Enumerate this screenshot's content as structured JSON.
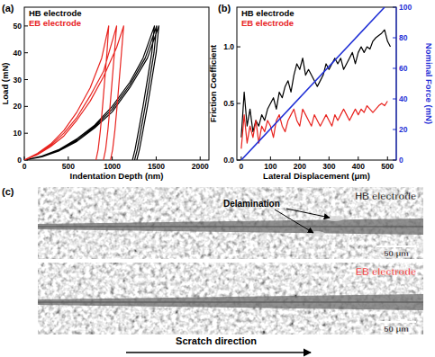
{
  "chart_data": [
    {
      "type": "line",
      "title": "(a)",
      "x_label": "Indentation Depth (nm)",
      "y_label": "Load (mN)",
      "xlim": [
        0,
        2100
      ],
      "ylim": [
        0,
        57
      ],
      "xticks": [
        0,
        500,
        1000,
        1500,
        2000
      ],
      "yticks": [
        0,
        10,
        20,
        30,
        40,
        50
      ],
      "grid": false,
      "legend": "upper left",
      "series": [
        {
          "name": "HB electrode",
          "color": "#000000",
          "x": [
            0,
            200,
            400,
            600,
            800,
            1000,
            1200,
            1350,
            1480,
            1450,
            1400,
            1350,
            1300,
            1260,
            1230,
            1230,
            0,
            200,
            400,
            600,
            800,
            1000,
            1200,
            1375,
            1505,
            1475,
            1425,
            1375,
            1325,
            1285,
            1255,
            1255,
            0,
            200,
            400,
            600,
            800,
            1000,
            1200,
            1400,
            1530,
            1500,
            1450,
            1400,
            1350,
            1310,
            1280
          ],
          "values": [
            0,
            1.5,
            4,
            8,
            13,
            20,
            29,
            38,
            50,
            40,
            30,
            20,
            11,
            4,
            0,
            null,
            0,
            1.3,
            3.7,
            7.5,
            12.5,
            19,
            28,
            38,
            50,
            40,
            30,
            20,
            11,
            4,
            0,
            null,
            0,
            1.2,
            3.5,
            7,
            12,
            18,
            27,
            38,
            50,
            40,
            30,
            20,
            11,
            4,
            0
          ]
        },
        {
          "name": "EB electrode",
          "color": "#e8231f",
          "x": [
            0,
            150,
            300,
            450,
            600,
            750,
            880,
            960,
            940,
            915,
            890,
            865,
            840,
            815,
            815,
            0,
            150,
            300,
            450,
            600,
            750,
            900,
            1050,
            1025,
            1000,
            975,
            950,
            925,
            900,
            900,
            0,
            150,
            300,
            450,
            600,
            750,
            900,
            1050,
            1130,
            1105,
            1080,
            1055,
            1030,
            1005,
            980
          ],
          "values": [
            0,
            2.5,
            6,
            11,
            18,
            27,
            38,
            50,
            40,
            30,
            20,
            11,
            4,
            0,
            null,
            0,
            2.2,
            5.5,
            10,
            16,
            24,
            33,
            50,
            40,
            30,
            20,
            11,
            4,
            0,
            null,
            0,
            2,
            5,
            9,
            15,
            22,
            31,
            42,
            50,
            40,
            30,
            20,
            11,
            4,
            0
          ]
        }
      ]
    },
    {
      "type": "line",
      "title": "(b)",
      "x_label": "Lateral Displacement (μm)",
      "y_label": "Friction Coefficient",
      "y2_label": "Nominal Force (mN)",
      "xlim": [
        -15,
        530
      ],
      "ylim": [
        0,
        1.35
      ],
      "y2lim": [
        0,
        100
      ],
      "xticks": [
        0,
        100,
        200,
        300,
        400,
        500
      ],
      "yticks": [
        {
          "value": 0,
          "label": "0.0"
        },
        {
          "value": 0.5,
          "label": "0.5"
        },
        {
          "value": 1,
          "label": "1.0"
        }
      ],
      "y2ticks": [
        0,
        20,
        40,
        60,
        80,
        100
      ],
      "grid": false,
      "legend": "upper left",
      "series": [
        {
          "name": "HB electrode",
          "color": "#000000",
          "x": [
            0,
            10,
            20,
            30,
            40,
            50,
            60,
            70,
            80,
            90,
            100,
            110,
            120,
            130,
            140,
            150,
            160,
            170,
            180,
            190,
            200,
            210,
            220,
            230,
            240,
            250,
            260,
            270,
            280,
            290,
            300,
            310,
            320,
            330,
            340,
            350,
            360,
            370,
            380,
            390,
            400,
            410,
            420,
            430,
            440,
            450,
            460,
            470,
            480,
            490,
            500,
            510
          ],
          "values": [
            0.2,
            0.6,
            0.3,
            0.45,
            0.25,
            0.35,
            0.3,
            0.4,
            0.35,
            0.45,
            0.5,
            0.55,
            0.45,
            0.6,
            0.55,
            0.65,
            0.7,
            0.6,
            0.75,
            0.85,
            0.8,
            0.9,
            0.75,
            0.8,
            0.75,
            0.7,
            0.65,
            0.7,
            0.75,
            0.85,
            0.8,
            0.85,
            0.9,
            0.85,
            0.9,
            0.8,
            0.85,
            0.9,
            0.95,
            0.85,
            0.95,
            1.0,
            0.95,
            1.0,
            0.98,
            1.05,
            1.08,
            1.1,
            1.12,
            1.15,
            1.05,
            1.0
          ]
        },
        {
          "name": "EB electrode",
          "color": "#e8231f",
          "x": [
            0,
            10,
            20,
            30,
            40,
            50,
            60,
            70,
            80,
            90,
            100,
            110,
            120,
            130,
            140,
            150,
            160,
            170,
            180,
            190,
            200,
            210,
            220,
            230,
            240,
            250,
            260,
            270,
            280,
            290,
            300,
            310,
            320,
            330,
            340,
            350,
            360,
            370,
            380,
            390,
            400,
            410,
            420,
            430,
            440,
            450,
            460,
            470,
            480,
            490,
            500
          ],
          "values": [
            0.1,
            0.4,
            0.15,
            0.3,
            0.2,
            0.35,
            0.15,
            0.3,
            0.25,
            0.35,
            0.3,
            0.2,
            0.35,
            0.4,
            0.3,
            0.25,
            0.35,
            0.4,
            0.45,
            0.35,
            0.3,
            0.45,
            0.4,
            0.35,
            0.3,
            0.4,
            0.35,
            0.3,
            0.35,
            0.4,
            0.35,
            0.3,
            0.4,
            0.35,
            0.4,
            0.45,
            0.4,
            0.35,
            0.4,
            0.45,
            0.4,
            0.45,
            0.42,
            0.48,
            0.45,
            0.42,
            0.45,
            0.48,
            0.5,
            0.48,
            0.52
          ]
        },
        {
          "color": "#1f2fd6",
          "axis": "y2",
          "x": [
            0,
            490
          ],
          "values": [
            0,
            100
          ]
        }
      ]
    }
  ],
  "panel_c": {
    "label": "(c)",
    "images": [
      {
        "label": "HB electrode",
        "annotation": "Delamination",
        "scale_bar": "50 μm"
      },
      {
        "label": "EB electrode",
        "scale_bar": "50 μm"
      }
    ],
    "caption": "Scratch direction"
  }
}
